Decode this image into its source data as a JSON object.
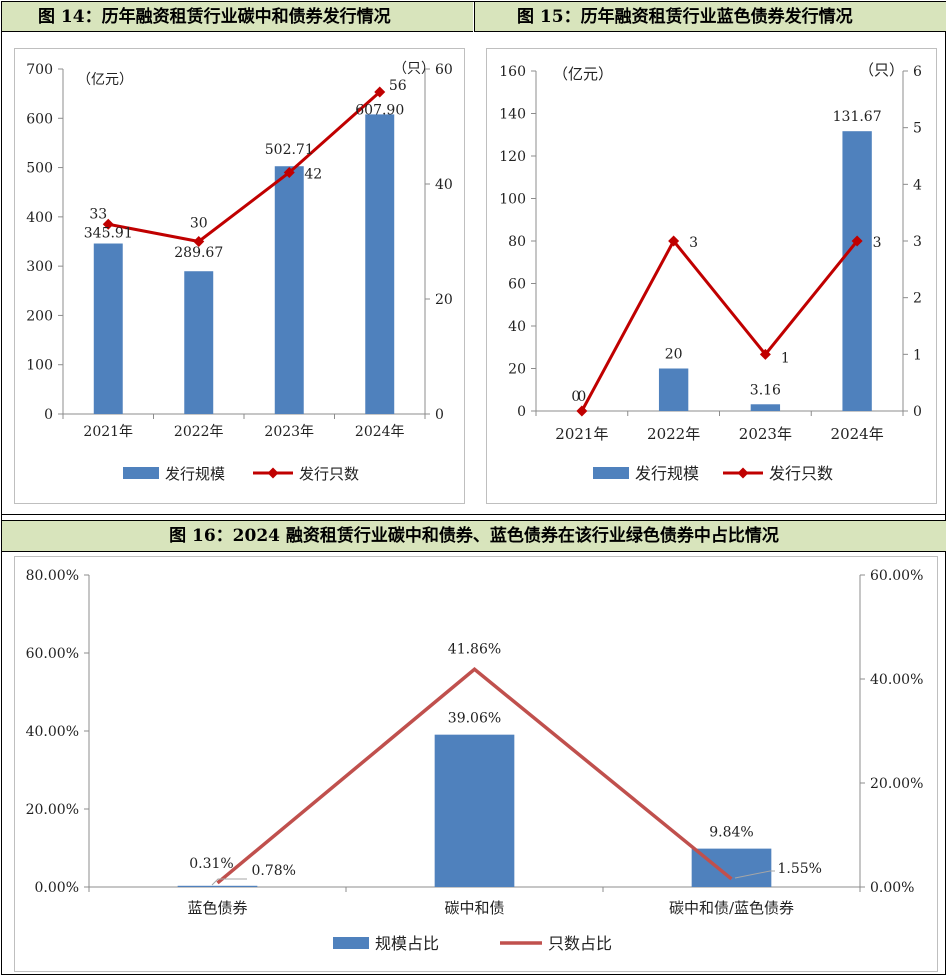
{
  "headers": {
    "fig14": "图 14：历年融资租赁行业碳中和债券发行情况",
    "fig15": "图 15：历年融资租赁行业蓝色债券发行情况",
    "fig16": "图 16：2024 融资租赁行业碳中和债券、蓝色债券在该行业绿色债券中占比情况"
  },
  "chart_data": [
    {
      "type": "bar+line",
      "categories": [
        "2021年",
        "2022年",
        "2023年",
        "2024年"
      ],
      "series": [
        {
          "name": "发行规模",
          "kind": "bar",
          "axis": "left",
          "values": [
            345.91,
            289.67,
            502.71,
            607.9
          ],
          "labels": [
            "345.91",
            "289.67",
            "502.71",
            "607.90"
          ],
          "color": "#4f81bd"
        },
        {
          "name": "发行只数",
          "kind": "line",
          "axis": "right",
          "values": [
            33,
            30,
            42,
            56
          ],
          "labels": [
            "33",
            "30",
            "42",
            "56"
          ],
          "color": "#c00000"
        }
      ],
      "yleft": {
        "unit": "（亿元）",
        "range": [
          0,
          700
        ],
        "ticks": [
          "0",
          "100",
          "200",
          "300",
          "400",
          "500",
          "600",
          "700"
        ]
      },
      "yright": {
        "unit": "（只）",
        "range": [
          0,
          60
        ],
        "ticks": [
          "0",
          "20",
          "40",
          "60"
        ]
      },
      "legend": "bottom"
    },
    {
      "type": "bar+line",
      "categories": [
        "2021年",
        "2022年",
        "2023年",
        "2024年"
      ],
      "series": [
        {
          "name": "发行规模",
          "kind": "bar",
          "axis": "left",
          "values": [
            0,
            20,
            3.16,
            131.67
          ],
          "labels": [
            "0",
            "20",
            "3.16",
            "131.67"
          ],
          "color": "#4f81bd"
        },
        {
          "name": "发行只数",
          "kind": "line",
          "axis": "right",
          "values": [
            0,
            3,
            1,
            3
          ],
          "labels": [
            "0",
            "3",
            "1",
            "3"
          ],
          "color": "#c00000"
        }
      ],
      "yleft": {
        "unit": "（亿元）",
        "range": [
          0,
          160
        ],
        "ticks": [
          "0",
          "20",
          "40",
          "60",
          "80",
          "100",
          "120",
          "140",
          "160"
        ]
      },
      "yright": {
        "unit": "（只）",
        "range": [
          0,
          6
        ],
        "ticks": [
          "0",
          "1",
          "2",
          "3",
          "4",
          "5",
          "6"
        ]
      },
      "legend": "bottom"
    },
    {
      "type": "bar+line",
      "categories": [
        "蓝色债券",
        "碳中和债",
        "碳中和债/蓝色债券"
      ],
      "series": [
        {
          "name": "规模占比",
          "kind": "bar",
          "axis": "left",
          "values": [
            0.31,
            39.06,
            9.84
          ],
          "labels": [
            "0.31%",
            "39.06%",
            "9.84%"
          ],
          "color": "#4f81bd"
        },
        {
          "name": "只数占比",
          "kind": "line",
          "axis": "right",
          "values": [
            0.78,
            41.86,
            1.55
          ],
          "labels": [
            "0.78%",
            "41.86%",
            "1.55%"
          ],
          "color": "#c0504d"
        }
      ],
      "yleft": {
        "range": [
          0,
          80
        ],
        "ticks": [
          "0.00%",
          "20.00%",
          "40.00%",
          "60.00%",
          "80.00%"
        ]
      },
      "yright": {
        "range": [
          0,
          60
        ],
        "ticks": [
          "0.00%",
          "20.00%",
          "40.00%",
          "60.00%"
        ]
      },
      "legend": "bottom"
    }
  ]
}
